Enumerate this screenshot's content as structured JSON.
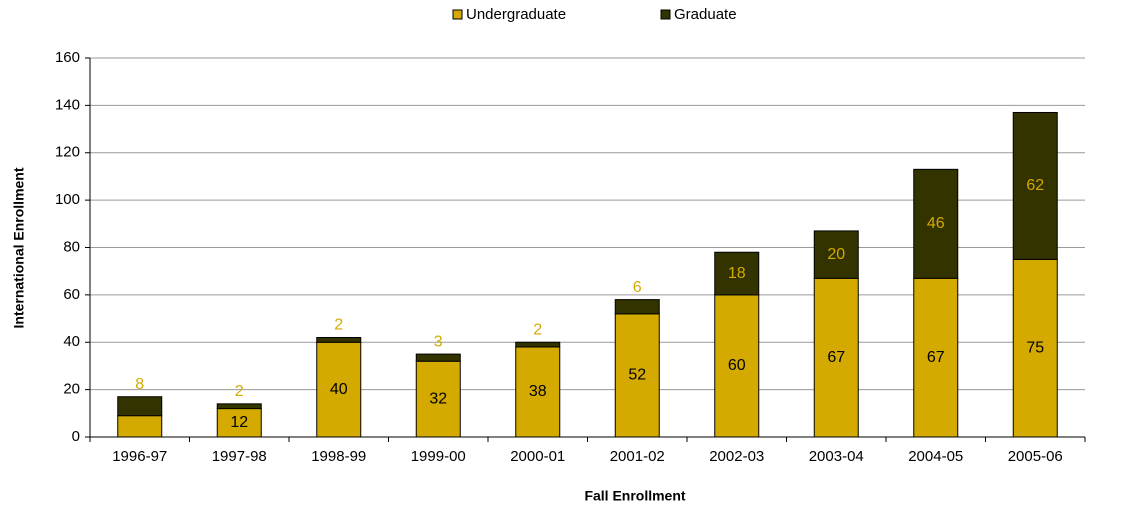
{
  "chart_data": {
    "type": "stacked_bar",
    "x_label": "Fall Enrollment",
    "y_label": "International Enrollment",
    "categories": [
      "1996-97",
      "1997-98",
      "1998-99",
      "1999-00",
      "2000-01",
      "2001-02",
      "2002-03",
      "2003-04",
      "2004-05",
      "2005-06"
    ],
    "series": [
      {
        "name": "Undergraduate",
        "color": "#d4aa00",
        "label_color": "#000000",
        "values": [
          9,
          12,
          40,
          32,
          38,
          52,
          60,
          67,
          67,
          75
        ]
      },
      {
        "name": "Graduate",
        "color": "#333300",
        "label_color": "#d4aa00",
        "values": [
          8,
          2,
          2,
          3,
          2,
          6,
          18,
          20,
          46,
          62
        ]
      }
    ],
    "ylim": [
      0,
      160
    ],
    "yticks": [
      0,
      20,
      40,
      60,
      80,
      100,
      120,
      140,
      160
    ],
    "grid": true,
    "legend": "top"
  }
}
